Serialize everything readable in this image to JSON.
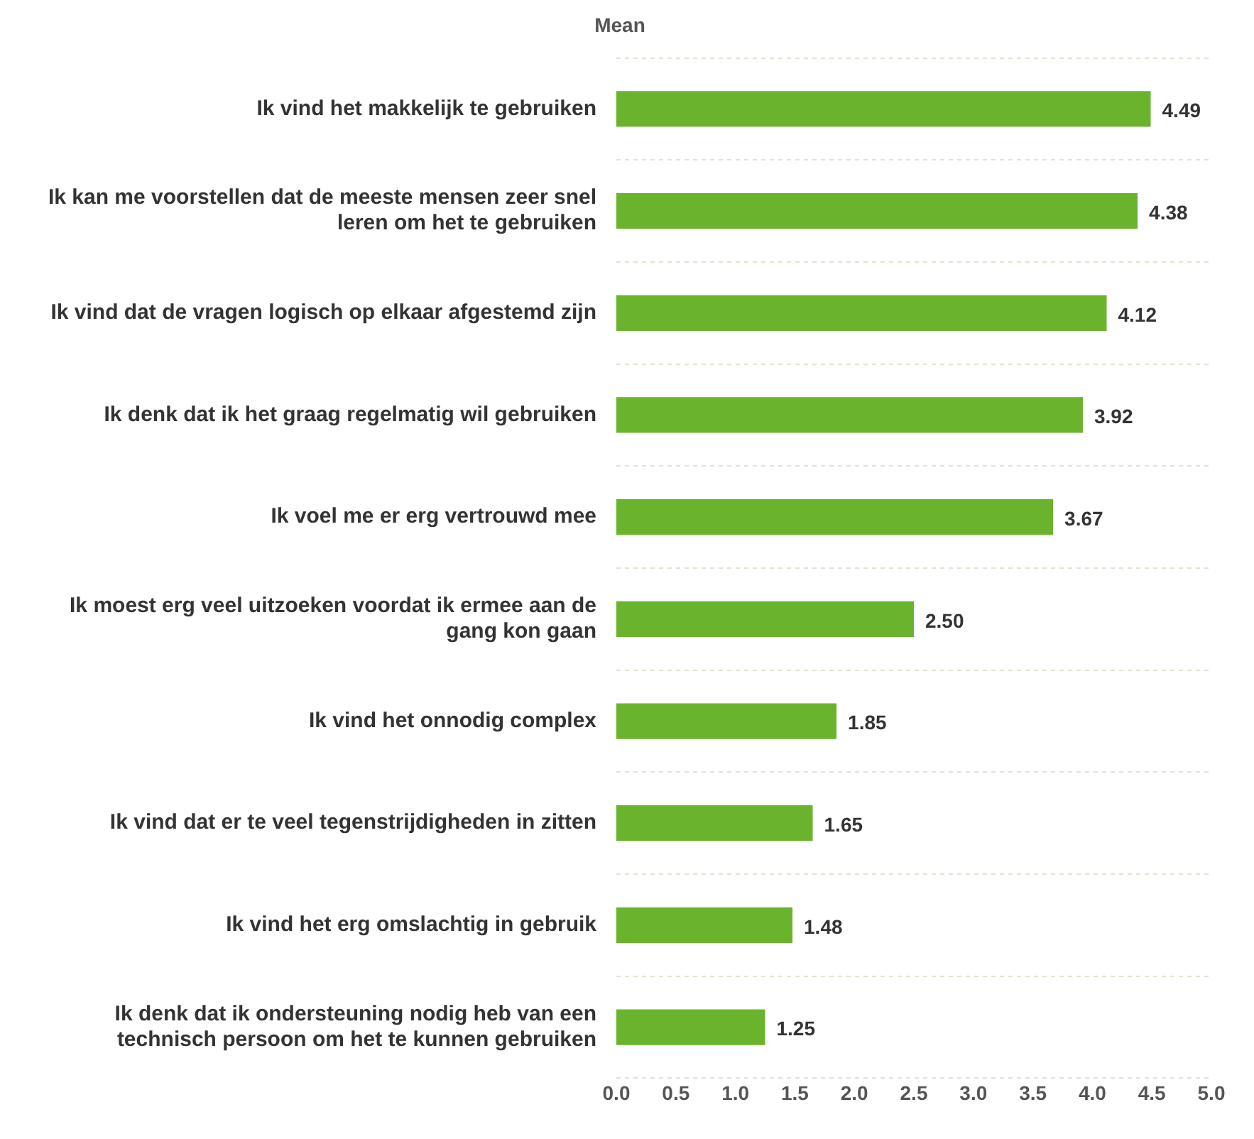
{
  "chart_data": {
    "type": "bar",
    "orientation": "horizontal",
    "title": "Mean",
    "categories": [
      "Ik vind het makkelijk te gebruiken",
      "Ik kan me voorstellen dat de meeste mensen zeer snel leren om het te gebruiken",
      "Ik vind dat de vragen logisch op elkaar afgestemd zijn",
      "Ik denk dat ik het graag regelmatig wil gebruiken",
      "Ik voel me er erg vertrouwd mee",
      "Ik moest erg veel uitzoeken voordat ik ermee aan de gang kon gaan",
      "Ik vind het onnodig complex",
      "Ik vind dat er te veel tegenstrijdigheden in zitten",
      "Ik vind het erg omslachtig in gebruik",
      "Ik denk dat ik ondersteuning nodig heb van een technisch persoon om het te kunnen gebruiken"
    ],
    "values": [
      4.49,
      4.38,
      4.12,
      3.92,
      3.67,
      2.5,
      1.85,
      1.65,
      1.48,
      1.25
    ],
    "value_labels": [
      "4.49",
      "4.38",
      "4.12",
      "3.92",
      "3.67",
      "2.50",
      "1.85",
      "1.65",
      "1.48",
      "1.25"
    ],
    "color": "#6ab42d",
    "xlim": [
      0,
      5
    ],
    "xticks": [
      {
        "value": 0,
        "label": "0.0"
      },
      {
        "value": 0.5,
        "label": "0.5"
      },
      {
        "value": 1,
        "label": "1.0"
      },
      {
        "value": 1.5,
        "label": "1.5"
      },
      {
        "value": 2,
        "label": "2.0"
      },
      {
        "value": 2.5,
        "label": "2.5"
      },
      {
        "value": 3,
        "label": "3.0"
      },
      {
        "value": 3.5,
        "label": "3.5"
      },
      {
        "value": 4,
        "label": "4.0"
      },
      {
        "value": 4.5,
        "label": "4.5"
      },
      {
        "value": 5,
        "label": "5.0"
      }
    ],
    "grid": "y",
    "legend": false
  }
}
